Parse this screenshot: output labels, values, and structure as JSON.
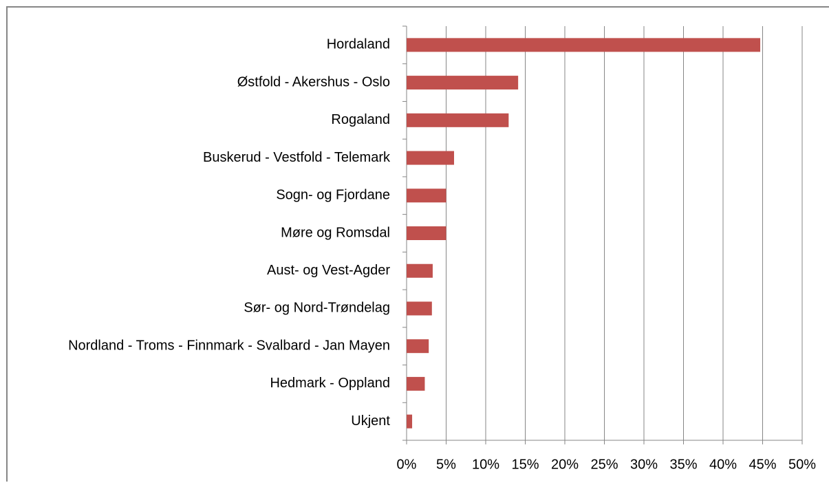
{
  "chart_data": {
    "type": "hbar",
    "categories": [
      "Hordaland",
      "Østfold - Akershus - Oslo",
      "Rogaland",
      "Buskerud - Vestfold - Telemark",
      "Sogn- og Fjordane",
      "Møre og Romsdal",
      "Aust- og Vest-Agder",
      "Sør- og Nord-Trøndelag",
      "Nordland - Troms - Finnmark - Svalbard - Jan Mayen",
      "Hedmark - Oppland",
      "Ukjent"
    ],
    "values": [
      44.7,
      14.1,
      12.9,
      6.0,
      5.0,
      5.0,
      3.3,
      3.2,
      2.8,
      2.3,
      0.7
    ],
    "color": "#c0504d",
    "xlim": [
      0,
      50
    ],
    "xticks": [
      {
        "value": 0,
        "label": "0%"
      },
      {
        "value": 5,
        "label": "5%"
      },
      {
        "value": 10,
        "label": "10%"
      },
      {
        "value": 15,
        "label": "15%"
      },
      {
        "value": 20,
        "label": "20%"
      },
      {
        "value": 25,
        "label": "25%"
      },
      {
        "value": 30,
        "label": "30%"
      },
      {
        "value": 35,
        "label": "35%"
      },
      {
        "value": 40,
        "label": "40%"
      },
      {
        "value": 45,
        "label": "45%"
      },
      {
        "value": 50,
        "label": "50%"
      }
    ],
    "grid": true
  }
}
